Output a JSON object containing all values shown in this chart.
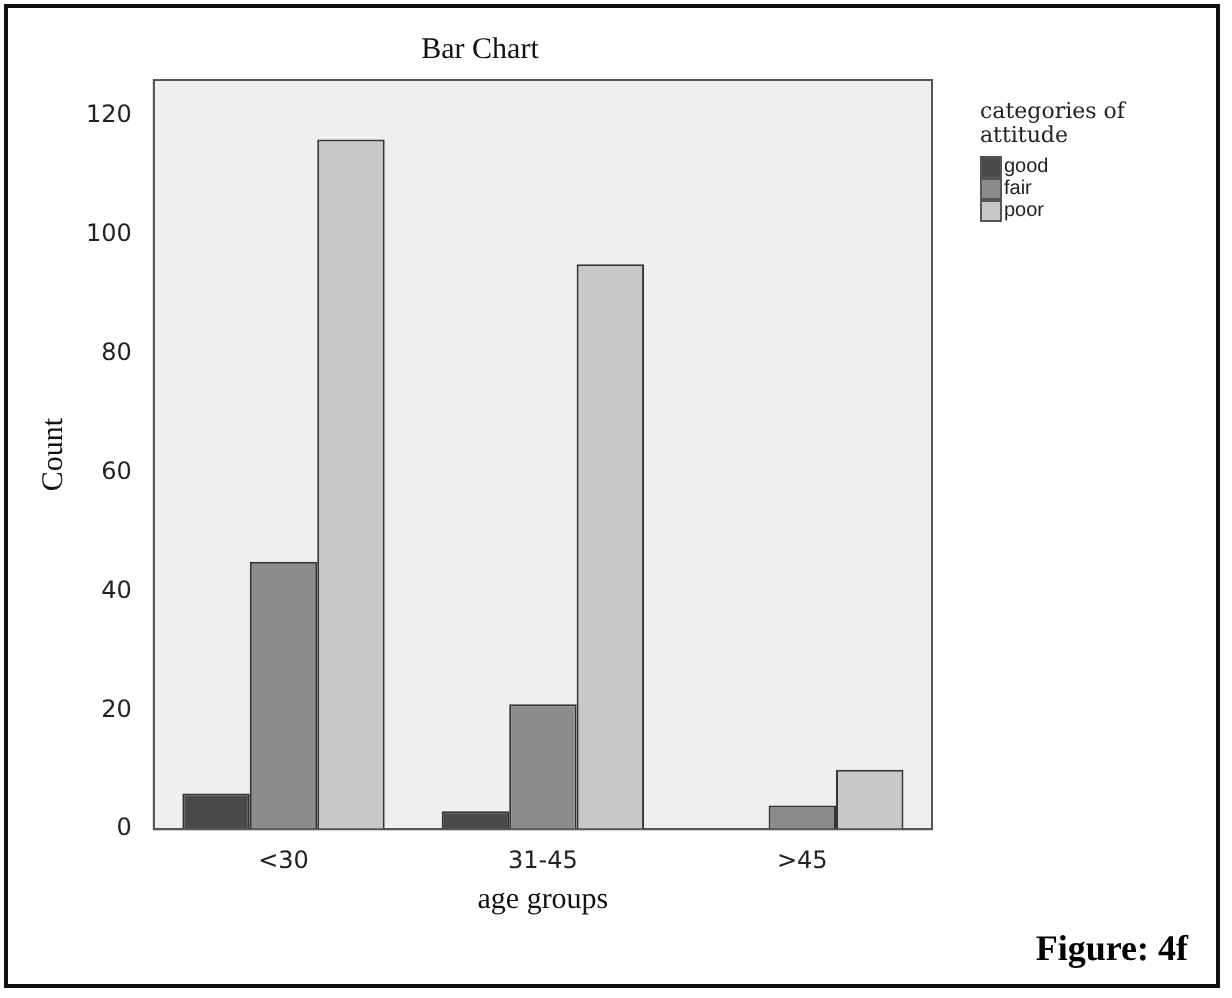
{
  "chart_data": {
    "type": "bar",
    "title": "Bar Chart",
    "xlabel": "age groups",
    "ylabel": "Count",
    "legend_title": "categories of attitude",
    "categories": [
      "<30",
      "31-45",
      ">45"
    ],
    "series": [
      {
        "name": "good",
        "color": "#4a4a4a",
        "values": [
          6,
          3,
          null
        ]
      },
      {
        "name": "fair",
        "color": "#8c8c8c",
        "values": [
          45,
          21,
          4
        ]
      },
      {
        "name": "poor",
        "color": "#c8c8c8",
        "values": [
          116,
          95,
          10
        ]
      }
    ],
    "ylim": [
      0,
      126
    ],
    "yticks": [
      0,
      20,
      40,
      60,
      80,
      100,
      120
    ],
    "grid": false,
    "legend": "top right",
    "annotations": [
      "Figure: 4f"
    ]
  }
}
